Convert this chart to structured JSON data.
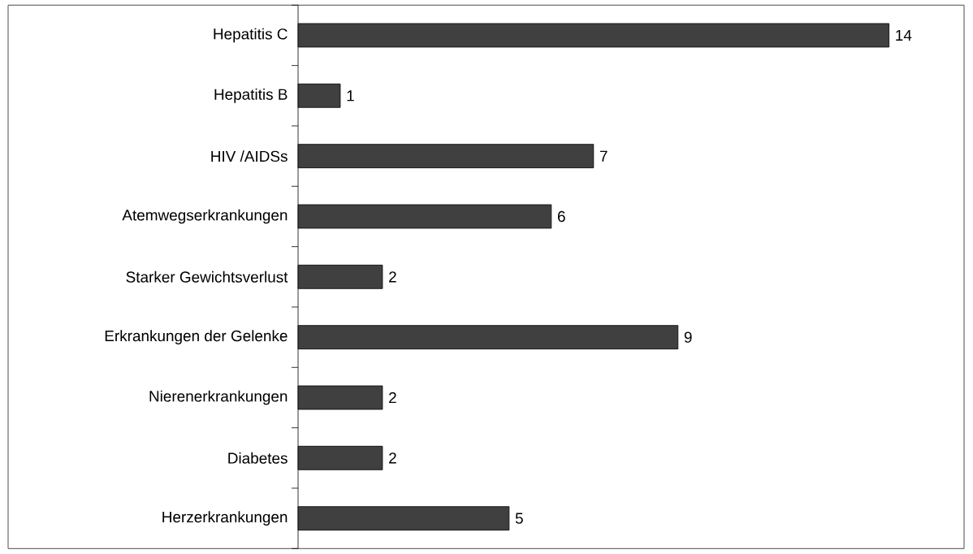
{
  "chart_data": {
    "type": "bar",
    "orientation": "horizontal",
    "categories": [
      "Hepatitis C",
      "Hepatitis B",
      "HIV /AIDSs",
      "Atemwegserkrankungen",
      "Starker Gewichtsverlust",
      "Erkrankungen der Gelenke",
      "Nierenerkrankungen",
      "Diabetes",
      "Herzerkrankungen"
    ],
    "values": [
      14,
      1,
      7,
      6,
      2,
      9,
      2,
      2,
      5
    ],
    "color": "#404040",
    "data_labels": true
  }
}
